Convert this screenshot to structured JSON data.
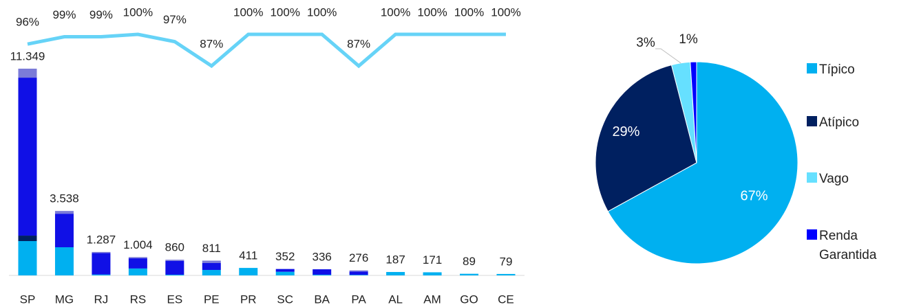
{
  "chart_data": [
    {
      "type": "bar",
      "categories": [
        "SP",
        "MG",
        "RJ",
        "RS",
        "ES",
        "PE",
        "PR",
        "SC",
        "BA",
        "PA",
        "AL",
        "AM",
        "GO",
        "CE"
      ],
      "series": [
        {
          "color": "#00b0f0",
          "values": [
            1885,
            1546,
            50,
            380,
            40,
            300,
            411,
            200,
            40,
            30,
            187,
            171,
            89,
            79
          ]
        },
        {
          "color": "#002060",
          "values": [
            300,
            0,
            0,
            0,
            0,
            0,
            0,
            0,
            0,
            0,
            0,
            0,
            0,
            0
          ]
        },
        {
          "color": "#1010e6",
          "values": [
            8670,
            1841,
            1180,
            560,
            760,
            380,
            0,
            152,
            296,
            186,
            0,
            0,
            0,
            0
          ]
        },
        {
          "color": "#7b7bd8",
          "values": [
            494,
            151,
            57,
            64,
            60,
            131,
            0,
            0,
            0,
            60,
            0,
            0,
            0,
            0
          ]
        },
        {
          "type": "line",
          "axis": "y2",
          "color": "#66d3f7",
          "values": [
            96,
            99,
            99,
            100,
            97,
            87,
            100,
            100,
            100,
            87,
            100,
            100,
            100,
            100
          ],
          "value_labels": [
            "96%",
            "99%",
            "99%",
            "100%",
            "97%",
            "87%",
            "100%",
            "100%",
            "100%",
            "87%",
            "100%",
            "100%",
            "100%",
            "100%"
          ]
        }
      ],
      "totals": [
        11349,
        3538,
        1287,
        1004,
        860,
        811,
        411,
        352,
        336,
        276,
        187,
        171,
        89,
        79
      ],
      "total_labels": [
        "11.349",
        "3.538",
        "1.287",
        "1.004",
        "860",
        "811",
        "411",
        "352",
        "336",
        "276",
        "187",
        "171",
        "89",
        "79"
      ],
      "ylim": [
        0,
        12000
      ],
      "y2lim": [
        60,
        100
      ]
    },
    {
      "type": "pie",
      "categories": [
        "Típico",
        "Atípico",
        "Vago",
        "Renda Garantida"
      ],
      "values": [
        67,
        29,
        3,
        1
      ],
      "value_labels": [
        "67%",
        "29%",
        "3%",
        "1%"
      ],
      "colors": [
        "#00b0f0",
        "#002060",
        "#66e0ff",
        "#0000ff"
      ]
    }
  ]
}
